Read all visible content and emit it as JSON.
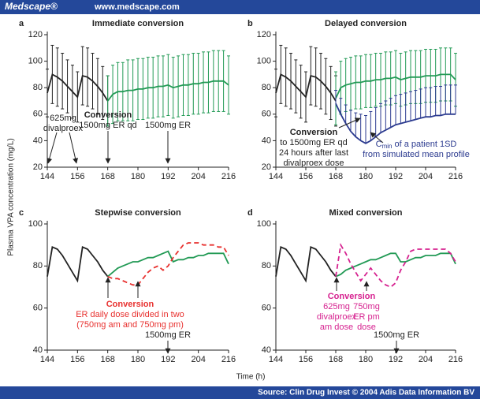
{
  "header": {
    "logo": "Medscape®",
    "url": "www.medscape.com"
  },
  "y_label": "Plasma VPA concentration (mg/L)",
  "x_label": "Time (h)",
  "footer": "Source: Clin Drug Invest © 2004 Adis Data Information BV",
  "chart_data": [
    {
      "type": "line",
      "letter": "a",
      "title": "Immediate conversion",
      "x": [
        144,
        146,
        148,
        150,
        152,
        154,
        156,
        158,
        160,
        162,
        164,
        166,
        168,
        170,
        172,
        174,
        176,
        178,
        180,
        182,
        184,
        186,
        188,
        190,
        192,
        194,
        196,
        198,
        200,
        202,
        204,
        206,
        208,
        210,
        212,
        214,
        216
      ],
      "xlim": [
        144,
        216
      ],
      "xticks": [
        144,
        156,
        168,
        180,
        192,
        204,
        216
      ],
      "ylim": [
        20,
        120
      ],
      "yticks": [
        20,
        40,
        60,
        80,
        100,
        120
      ],
      "series": [
        {
          "color": "#222222",
          "values": [
            76,
            90,
            88,
            85,
            81,
            77,
            73,
            89,
            88,
            85,
            81,
            76,
            70,
            null,
            null,
            null,
            null,
            null,
            null,
            null,
            null,
            null,
            null,
            null,
            null,
            null,
            null,
            null,
            null,
            null,
            null,
            null,
            null,
            null,
            null,
            null,
            null
          ],
          "errors": [
            18,
            22,
            22,
            21,
            20,
            20,
            19,
            22,
            22,
            21,
            21,
            20,
            19,
            null,
            null,
            null,
            null,
            null,
            null,
            null,
            null,
            null,
            null,
            null,
            null,
            null,
            null,
            null,
            null,
            null,
            null,
            null,
            null,
            null,
            null,
            null,
            null
          ]
        },
        {
          "color": "#229a55",
          "values": [
            null,
            null,
            null,
            null,
            null,
            null,
            null,
            null,
            null,
            null,
            null,
            null,
            70,
            75,
            77,
            77,
            78,
            78,
            79,
            79,
            80,
            80,
            81,
            81,
            82,
            80,
            81,
            82,
            82,
            83,
            83,
            84,
            84,
            85,
            85,
            85,
            82
          ],
          "errors": [
            null,
            null,
            null,
            null,
            null,
            null,
            null,
            null,
            null,
            null,
            null,
            null,
            19,
            22,
            22,
            22,
            23,
            23,
            23,
            23,
            23,
            23,
            23,
            23,
            23,
            23,
            23,
            23,
            23,
            23,
            23,
            23,
            23,
            23,
            23,
            23,
            22
          ]
        }
      ],
      "annotations": [
        {
          "lines": [
            "625mg",
            "divalproex"
          ],
          "color": "#222222"
        },
        {
          "lines": [
            "Conversion",
            "1500mg ER qd"
          ],
          "color": "#222222"
        },
        {
          "lines": [
            "1500mg ER"
          ],
          "color": "#222222"
        }
      ]
    },
    {
      "type": "line",
      "letter": "b",
      "title": "Delayed conversion",
      "x": [
        144,
        146,
        148,
        150,
        152,
        154,
        156,
        158,
        160,
        162,
        164,
        166,
        168,
        170,
        172,
        174,
        176,
        178,
        180,
        182,
        184,
        186,
        188,
        190,
        192,
        194,
        196,
        198,
        200,
        202,
        204,
        206,
        208,
        210,
        212,
        214,
        216
      ],
      "xlim": [
        144,
        216
      ],
      "xticks": [
        144,
        156,
        168,
        180,
        192,
        204,
        216
      ],
      "ylim": [
        20,
        120
      ],
      "yticks": [
        20,
        40,
        60,
        80,
        100,
        120
      ],
      "series": [
        {
          "color": "#222222",
          "values": [
            76,
            90,
            88,
            85,
            81,
            77,
            73,
            89,
            88,
            85,
            81,
            76,
            70,
            null,
            null,
            null,
            null,
            null,
            null,
            null,
            null,
            null,
            null,
            null,
            null,
            null,
            null,
            null,
            null,
            null,
            null,
            null,
            null,
            null,
            null,
            null,
            null
          ],
          "errors": [
            18,
            22,
            22,
            21,
            20,
            20,
            19,
            22,
            22,
            21,
            21,
            20,
            19,
            null,
            null,
            null,
            null,
            null,
            null,
            null,
            null,
            null,
            null,
            null,
            null,
            null,
            null,
            null,
            null,
            null,
            null,
            null,
            null,
            null,
            null,
            null,
            null
          ]
        },
        {
          "color": "#229a55",
          "values": [
            null,
            null,
            null,
            null,
            null,
            null,
            null,
            null,
            null,
            null,
            null,
            null,
            72,
            80,
            82,
            83,
            84,
            84,
            85,
            85,
            86,
            86,
            87,
            87,
            88,
            86,
            87,
            88,
            88,
            88,
            89,
            89,
            89,
            90,
            90,
            90,
            86
          ],
          "errors": [
            null,
            null,
            null,
            null,
            null,
            null,
            null,
            null,
            null,
            null,
            null,
            null,
            20,
            20,
            20,
            20,
            20,
            20,
            20,
            20,
            20,
            20,
            20,
            20,
            20,
            20,
            20,
            20,
            20,
            20,
            20,
            20,
            20,
            20,
            20,
            20,
            20
          ]
        },
        {
          "color": "#2b3a8f",
          "error_direction": "up",
          "values": [
            null,
            null,
            null,
            null,
            null,
            null,
            null,
            null,
            null,
            null,
            null,
            null,
            68,
            60,
            53,
            47,
            43,
            40,
            38,
            40,
            43,
            46,
            48,
            50,
            52,
            53,
            54,
            55,
            56,
            57,
            58,
            58,
            59,
            59,
            60,
            60,
            60
          ],
          "errors": [
            null,
            null,
            null,
            null,
            null,
            null,
            null,
            null,
            null,
            null,
            null,
            null,
            10,
            12,
            14,
            16,
            18,
            20,
            21,
            22,
            22,
            22,
            22,
            22,
            22,
            22,
            22,
            22,
            22,
            22,
            22,
            22,
            22,
            22,
            22,
            22,
            22
          ]
        }
      ],
      "annotations": [
        {
          "lines": [
            "Conversion",
            "to 1500mg ER qd",
            "24 hours after last",
            "divalproex dose"
          ],
          "color": "#222222"
        },
        {
          "lines": [
            "C",
            "min",
            "of a patient 1SD",
            "from simulated mean profile"
          ],
          "color": "#2b3a8f"
        }
      ]
    },
    {
      "type": "line",
      "letter": "c",
      "title": "Stepwise conversion",
      "x": [
        144,
        146,
        148,
        150,
        152,
        154,
        156,
        158,
        160,
        162,
        164,
        166,
        168,
        170,
        172,
        174,
        176,
        178,
        180,
        182,
        184,
        186,
        188,
        190,
        192,
        194,
        196,
        198,
        200,
        202,
        204,
        206,
        208,
        210,
        212,
        214,
        216
      ],
      "xlim": [
        144,
        216
      ],
      "xticks": [
        144,
        156,
        168,
        180,
        192,
        204,
        216
      ],
      "ylim": [
        40,
        100
      ],
      "yticks": [
        40,
        60,
        80,
        100
      ],
      "series": [
        {
          "color": "#222222",
          "values": [
            75,
            89,
            88,
            85,
            81,
            77,
            73,
            89,
            88,
            85,
            82,
            78,
            75,
            null,
            null,
            null,
            null,
            null,
            null,
            null,
            null,
            null,
            null,
            null,
            null,
            null,
            null,
            null,
            null,
            null,
            null,
            null,
            null,
            null,
            null,
            null,
            null
          ]
        },
        {
          "color": "#229a55",
          "values": [
            null,
            null,
            null,
            null,
            null,
            null,
            null,
            null,
            null,
            null,
            null,
            null,
            75,
            77,
            79,
            80,
            81,
            82,
            82,
            83,
            84,
            84,
            85,
            86,
            87,
            82,
            83,
            83,
            84,
            84,
            85,
            85,
            86,
            86,
            86,
            86,
            81
          ]
        },
        {
          "color": "#e8312f",
          "dash": true,
          "values": [
            null,
            null,
            null,
            null,
            null,
            null,
            null,
            null,
            null,
            null,
            null,
            null,
            75,
            74,
            74,
            73,
            72,
            71,
            71,
            74,
            77,
            79,
            80,
            78,
            80,
            84,
            87,
            90,
            91,
            91,
            91,
            90,
            90,
            90,
            89,
            89,
            85
          ]
        }
      ],
      "annotations": [
        {
          "lines": [
            "Conversion",
            "ER daily dose divided in two",
            "(750mg am and 750mg pm)"
          ],
          "color": "#e8312f"
        },
        {
          "lines": [
            "1500mg ER"
          ],
          "color": "#222222"
        }
      ]
    },
    {
      "type": "line",
      "letter": "d",
      "title": "Mixed conversion",
      "x": [
        144,
        146,
        148,
        150,
        152,
        154,
        156,
        158,
        160,
        162,
        164,
        166,
        168,
        170,
        172,
        174,
        176,
        178,
        180,
        182,
        184,
        186,
        188,
        190,
        192,
        194,
        196,
        198,
        200,
        202,
        204,
        206,
        208,
        210,
        212,
        214,
        216
      ],
      "xlim": [
        144,
        216
      ],
      "xticks": [
        144,
        156,
        168,
        180,
        192,
        204,
        216
      ],
      "ylim": [
        40,
        100
      ],
      "yticks": [
        40,
        60,
        80,
        100
      ],
      "series": [
        {
          "color": "#222222",
          "values": [
            75,
            89,
            88,
            85,
            81,
            77,
            73,
            89,
            88,
            85,
            82,
            78,
            75,
            null,
            null,
            null,
            null,
            null,
            null,
            null,
            null,
            null,
            null,
            null,
            null,
            null,
            null,
            null,
            null,
            null,
            null,
            null,
            null,
            null,
            null,
            null,
            null
          ]
        },
        {
          "color": "#229a55",
          "values": [
            null,
            null,
            null,
            null,
            null,
            null,
            null,
            null,
            null,
            null,
            null,
            null,
            75,
            76,
            78,
            79,
            80,
            81,
            82,
            83,
            83,
            84,
            85,
            86,
            86,
            82,
            82,
            83,
            84,
            84,
            85,
            85,
            85,
            86,
            86,
            86,
            81
          ]
        },
        {
          "color": "#d6218f",
          "dash": true,
          "values": [
            null,
            null,
            null,
            null,
            null,
            null,
            null,
            null,
            null,
            null,
            null,
            null,
            75,
            90,
            86,
            81,
            77,
            73,
            76,
            79,
            76,
            73,
            71,
            70,
            72,
            78,
            82,
            87,
            88,
            88,
            88,
            88,
            88,
            88,
            88,
            86,
            82
          ]
        }
      ],
      "annotations": [
        {
          "lines": [
            "Conversion"
          ],
          "color": "#d6218f"
        },
        {
          "lines": [
            "625mg",
            "divalproex",
            "am dose"
          ],
          "color": "#d6218f"
        },
        {
          "lines": [
            "750mg",
            "ER pm",
            "dose"
          ],
          "color": "#d6218f"
        },
        {
          "lines": [
            "1500mg ER"
          ],
          "color": "#222222"
        }
      ]
    }
  ]
}
